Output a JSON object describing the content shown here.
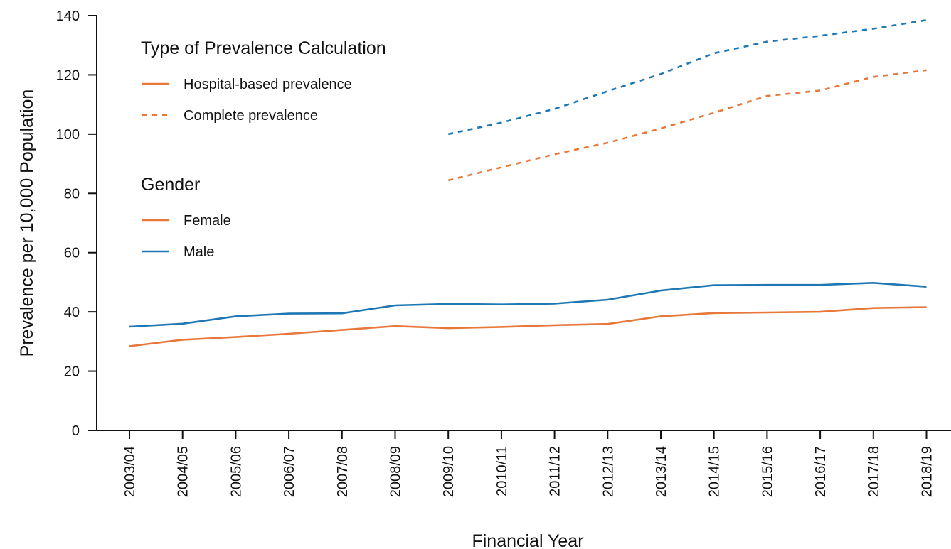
{
  "chart_data": {
    "type": "line",
    "xlabel": "Financial Year",
    "ylabel": "Prevalence per 10,000 Population",
    "ylim": [
      0,
      140
    ],
    "yticks": [
      0,
      20,
      40,
      60,
      80,
      100,
      120,
      140
    ],
    "categories": [
      "2003/04",
      "2004/05",
      "2005/06",
      "2006/07",
      "2007/08",
      "2008/09",
      "2009/10",
      "2010/11",
      "2011/12",
      "2012/13",
      "2013/14",
      "2014/15",
      "2015/16",
      "2016/17",
      "2017/18",
      "2018/19"
    ],
    "grid": false,
    "legend_placement": "top-left",
    "colors": {
      "female": "#e8773a",
      "male": "#1f77b4"
    },
    "legend": {
      "type_title": "Type of Prevalence Calculation",
      "type_items": [
        {
          "label": "Hospital-based prevalence",
          "style": "solid"
        },
        {
          "label": "Complete prevalence",
          "style": "dashed"
        }
      ],
      "gender_title": "Gender",
      "gender_items": [
        {
          "label": "Female",
          "color_key": "female"
        },
        {
          "label": "Male",
          "color_key": "male"
        }
      ]
    },
    "series": [
      {
        "gender": "male",
        "calculation": "hospital",
        "style": "solid",
        "values": [
          35.0,
          36.0,
          38.5,
          39.4,
          39.5,
          42.2,
          42.7,
          42.5,
          42.8,
          44.1,
          47.2,
          49.0,
          49.1,
          49.1,
          49.8,
          48.5
        ]
      },
      {
        "gender": "female",
        "calculation": "hospital",
        "style": "solid",
        "values": [
          28.4,
          30.6,
          31.5,
          32.6,
          33.9,
          35.2,
          34.5,
          34.9,
          35.5,
          35.9,
          38.5,
          39.6,
          39.8,
          40.0,
          41.3,
          41.6
        ]
      },
      {
        "gender": "male",
        "calculation": "complete",
        "style": "dashed",
        "values": [
          null,
          null,
          null,
          null,
          null,
          null,
          100.0,
          103.9,
          108.5,
          114.5,
          120.3,
          127.3,
          131.2,
          133.2,
          135.6,
          138.5
        ]
      },
      {
        "gender": "female",
        "calculation": "complete",
        "style": "dashed",
        "values": [
          null,
          null,
          null,
          null,
          null,
          null,
          84.4,
          88.8,
          93.2,
          97.1,
          101.9,
          107.2,
          112.9,
          114.7,
          119.3,
          121.6
        ]
      }
    ]
  }
}
